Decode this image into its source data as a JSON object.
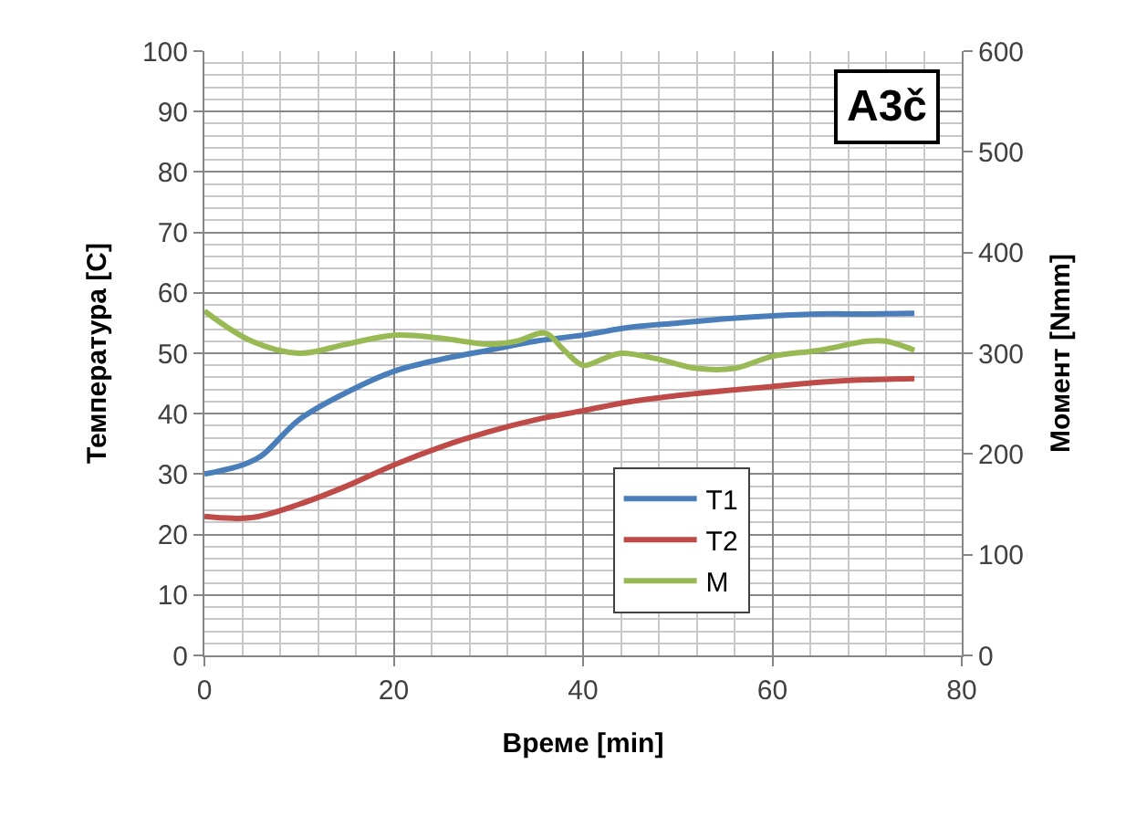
{
  "chart_data": {
    "type": "line",
    "xlabel": "Време [min]",
    "ylabel": "Температура [C]",
    "y2label": "Момент [Nmm]",
    "annotations": [
      "A3č"
    ],
    "xlim": [
      0,
      80
    ],
    "xticks": [
      0,
      20,
      40,
      60,
      80
    ],
    "ylim": [
      0,
      100
    ],
    "yticks": [
      0,
      10,
      20,
      30,
      40,
      50,
      60,
      70,
      80,
      90,
      100
    ],
    "y2lim": [
      0,
      600
    ],
    "y2ticks": [
      0,
      100,
      200,
      300,
      400,
      500,
      600
    ],
    "grid": true,
    "legend": "bottom right",
    "marker": "none",
    "line_style": "solid",
    "series": [
      {
        "name": "T1",
        "color": "#4a7ebb",
        "x": [
          0,
          4,
          6,
          10,
          15,
          20,
          25,
          30,
          35,
          40,
          45,
          50,
          55,
          60,
          65,
          70,
          75
        ],
        "values": [
          30,
          31.5,
          33,
          39,
          43.5,
          47,
          49,
          50.5,
          52,
          53,
          54.3,
          55,
          55.7,
          56.2,
          56.5,
          56.5,
          56.6
        ]
      },
      {
        "name": "T2",
        "color": "#be4b48",
        "x": [
          0,
          5,
          10,
          15,
          20,
          25,
          30,
          35,
          40,
          45,
          50,
          55,
          60,
          65,
          70,
          75
        ],
        "values": [
          23,
          22.8,
          25,
          28,
          31.5,
          34.5,
          37,
          39,
          40.5,
          42,
          43,
          43.8,
          44.5,
          45.2,
          45.6,
          45.8
        ]
      },
      {
        "name": "M",
        "color": "#98b954",
        "axis": "y2",
        "x": [
          0,
          5,
          10,
          15,
          20,
          25,
          30,
          33,
          36,
          38,
          40,
          42,
          44,
          48,
          52,
          56,
          60,
          65,
          70,
          72,
          75
        ],
        "values": [
          342,
          312,
          300,
          309,
          318,
          315,
          309,
          312,
          320,
          303,
          288,
          294,
          300,
          294,
          285,
          285,
          297,
          303,
          312,
          312,
          303
        ]
      }
    ]
  }
}
